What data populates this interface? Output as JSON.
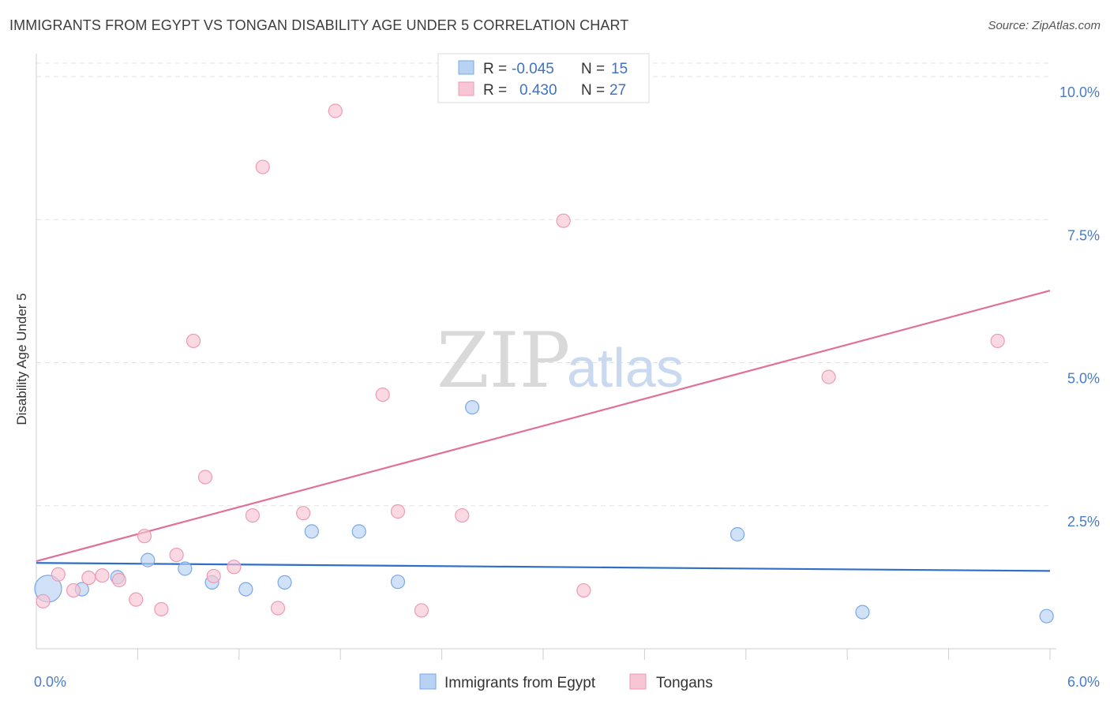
{
  "header": {
    "title": "IMMIGRANTS FROM EGYPT VS TONGAN DISABILITY AGE UNDER 5 CORRELATION CHART",
    "source": "Source: ZipAtlas.com"
  },
  "watermark": {
    "zip": "ZIP",
    "atlas": "atlas"
  },
  "legend": {
    "rows": [
      {
        "r_label": "R = ",
        "r_value": "-0.045",
        "n_label": "N = ",
        "n_value": "15"
      },
      {
        "r_label": "R = ",
        "r_value": "0.430",
        "n_label": "N = ",
        "n_value": "27"
      }
    ]
  },
  "colors": {
    "blue_fill": "#b8d2f4",
    "blue_stroke": "#7aa8e6",
    "blue_line": "#2f6fc6",
    "pink_fill": "#f8c5d4",
    "pink_stroke": "#ee9ab4",
    "pink_line": "#e0709a",
    "grid": "#e3e3e3",
    "axis": "#cfcfcf"
  },
  "chart_data": {
    "type": "scatter",
    "title": "IMMIGRANTS FROM EGYPT VS TONGAN DISABILITY AGE UNDER 5 CORRELATION CHART",
    "xlabel": "",
    "ylabel": "Disability Age Under 5",
    "xlim": [
      0,
      6.0
    ],
    "ylim": [
      0,
      10.4
    ],
    "x_tick_labels": [
      {
        "value": 0,
        "label": "0.0%"
      },
      {
        "value": 6.0,
        "label": "6.0%"
      }
    ],
    "x_minor_ticks": [
      0.6,
      1.2,
      1.8,
      2.4,
      3.0,
      3.6,
      4.2,
      4.8,
      5.4,
      6.0
    ],
    "y_ticks": [
      {
        "value": 2.5,
        "label": "2.5%"
      },
      {
        "value": 5.0,
        "label": "5.0%"
      },
      {
        "value": 7.5,
        "label": "7.5%"
      },
      {
        "value": 10.0,
        "label": "10.0%"
      }
    ],
    "series": [
      {
        "name": "Immigrants from Egypt",
        "color_key": "blue",
        "r": -0.045,
        "n": 15,
        "trend": {
          "x": [
            0,
            6.0
          ],
          "y": [
            1.5,
            1.36
          ]
        },
        "points": [
          {
            "x": 0.07,
            "y": 1.05,
            "big": true
          },
          {
            "x": 0.27,
            "y": 1.04
          },
          {
            "x": 0.48,
            "y": 1.25
          },
          {
            "x": 0.66,
            "y": 1.55
          },
          {
            "x": 0.88,
            "y": 1.4
          },
          {
            "x": 1.04,
            "y": 1.16
          },
          {
            "x": 1.24,
            "y": 1.04
          },
          {
            "x": 1.47,
            "y": 1.16
          },
          {
            "x": 1.63,
            "y": 2.05
          },
          {
            "x": 1.91,
            "y": 2.05
          },
          {
            "x": 2.14,
            "y": 1.17
          },
          {
            "x": 2.58,
            "y": 4.22
          },
          {
            "x": 4.15,
            "y": 2.0
          },
          {
            "x": 4.89,
            "y": 0.64
          },
          {
            "x": 5.98,
            "y": 0.57
          }
        ]
      },
      {
        "name": "Tongans",
        "color_key": "pink",
        "r": 0.43,
        "n": 27,
        "trend": {
          "x": [
            0,
            6.0
          ],
          "y": [
            1.53,
            6.26
          ]
        },
        "points": [
          {
            "x": 0.04,
            "y": 0.83
          },
          {
            "x": 0.13,
            "y": 1.3
          },
          {
            "x": 0.22,
            "y": 1.02
          },
          {
            "x": 0.31,
            "y": 1.24
          },
          {
            "x": 0.39,
            "y": 1.28
          },
          {
            "x": 0.49,
            "y": 1.2
          },
          {
            "x": 0.59,
            "y": 0.86
          },
          {
            "x": 0.64,
            "y": 1.97
          },
          {
            "x": 0.74,
            "y": 0.69
          },
          {
            "x": 0.83,
            "y": 1.64
          },
          {
            "x": 0.93,
            "y": 5.38
          },
          {
            "x": 1.0,
            "y": 3.0
          },
          {
            "x": 1.05,
            "y": 1.27
          },
          {
            "x": 1.17,
            "y": 1.43
          },
          {
            "x": 1.28,
            "y": 2.33
          },
          {
            "x": 1.34,
            "y": 8.42
          },
          {
            "x": 1.43,
            "y": 0.71
          },
          {
            "x": 1.58,
            "y": 2.37
          },
          {
            "x": 1.77,
            "y": 9.4
          },
          {
            "x": 2.05,
            "y": 4.44
          },
          {
            "x": 2.14,
            "y": 2.4
          },
          {
            "x": 2.28,
            "y": 0.67
          },
          {
            "x": 2.52,
            "y": 2.33
          },
          {
            "x": 3.12,
            "y": 7.48
          },
          {
            "x": 3.24,
            "y": 1.02
          },
          {
            "x": 4.69,
            "y": 4.75
          },
          {
            "x": 5.69,
            "y": 5.38
          }
        ]
      }
    ],
    "legend_entries": [
      "Immigrants from Egypt",
      "Tongans"
    ]
  }
}
